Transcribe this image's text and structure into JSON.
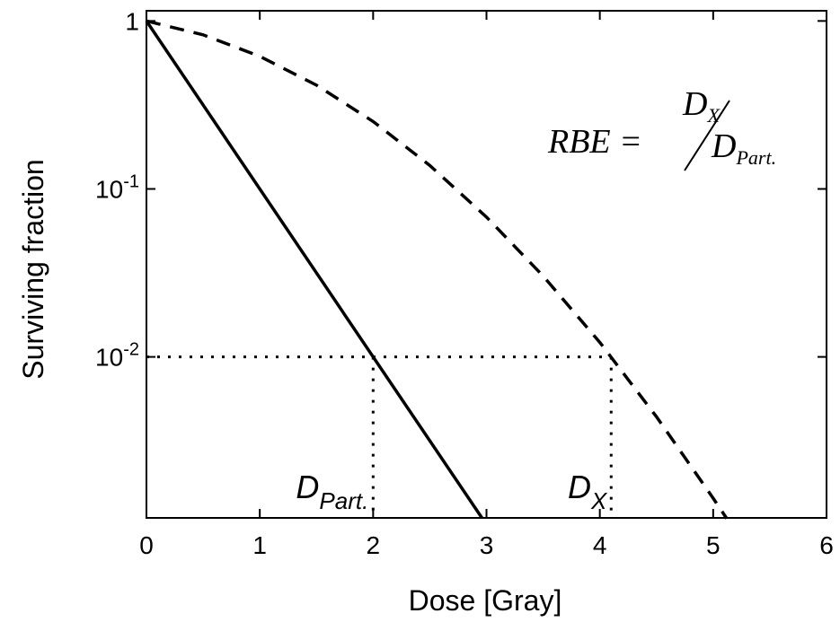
{
  "chart_data": {
    "type": "line",
    "x_label": "Dose [Gray]",
    "y_label": "Surviving fraction",
    "log_y": true,
    "xlim": [
      0,
      6
    ],
    "xticks": [
      0,
      1,
      2,
      3,
      4,
      5,
      6
    ],
    "ylim": [
      0.0011,
      1.15
    ],
    "yticks": [
      1,
      {
        "value": 0.1,
        "label": "10",
        "exp": "-1"
      },
      {
        "value": 0.01,
        "label": "10",
        "exp": "-2"
      }
    ],
    "series": [
      {
        "color": "#000000",
        "dash": "solid",
        "x": [
          0,
          1,
          2,
          2.96
        ],
        "values": [
          1,
          0.1,
          0.01,
          0.0011
        ]
      },
      {
        "color": "#000000",
        "dash": "dashed",
        "x": [
          0,
          0.5,
          1,
          1.5,
          2,
          2.5,
          3,
          3.5,
          4,
          4.5,
          5,
          5.12
        ],
        "values": [
          1,
          0.827,
          0.616,
          0.415,
          0.252,
          0.138,
          0.068,
          0.0303,
          0.0122,
          0.0044,
          0.00144,
          0.00109
        ]
      }
    ],
    "guides": {
      "y": 0.01,
      "x": [
        2,
        4.1
      ]
    },
    "annotations": [
      {
        "main": "D",
        "sub": "Part.",
        "x": 2
      },
      {
        "main": "D",
        "sub": "X",
        "x": 4.1
      }
    ],
    "formula": {
      "lhs": "RBE =",
      "num": "D",
      "num_sub": "X",
      "den": "D",
      "den_sub": "Part."
    }
  }
}
